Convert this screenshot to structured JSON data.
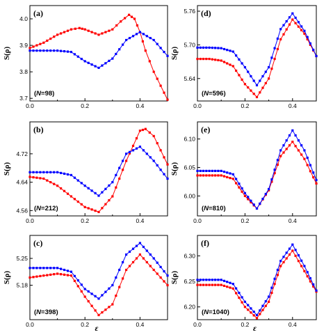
{
  "colors": {
    "red": "#ff0000",
    "blue": "#0000ff",
    "axis": "#000000"
  },
  "chart_data": [
    {
      "type": "line",
      "panel": "(a)",
      "n_label": {
        "pre": "(",
        "var": "N",
        "eq": "=98)"
      },
      "ylabel": "S(ρ)",
      "xlabel": "",
      "xlim": [
        0.0,
        0.5
      ],
      "ylim": [
        3.69,
        4.05
      ],
      "xticks": [
        "0.0",
        "0.2",
        "0.4"
      ],
      "yticks": [
        "3.7",
        "3.8",
        "3.9",
        "4.0"
      ],
      "series": [
        {
          "color": "red",
          "x": [
            0.0,
            0.05,
            0.1,
            0.15,
            0.18,
            0.2,
            0.25,
            0.3,
            0.33,
            0.36,
            0.38,
            0.4,
            0.42,
            0.45,
            0.5
          ],
          "y": [
            3.89,
            3.91,
            3.94,
            3.96,
            3.965,
            3.96,
            3.94,
            3.96,
            3.99,
            4.015,
            4.0,
            3.95,
            3.88,
            3.8,
            3.695
          ]
        },
        {
          "color": "blue",
          "x": [
            0.0,
            0.05,
            0.1,
            0.15,
            0.2,
            0.25,
            0.3,
            0.35,
            0.4,
            0.45,
            0.5
          ],
          "y": [
            3.88,
            3.88,
            3.88,
            3.875,
            3.84,
            3.815,
            3.85,
            3.92,
            3.95,
            3.92,
            3.86
          ]
        }
      ]
    },
    {
      "type": "line",
      "panel": "(d)",
      "n_label": {
        "pre": "(",
        "var": "N",
        "eq": "=596)"
      },
      "ylabel": "S(ρ)",
      "xlabel": "",
      "xlim": [
        0.0,
        0.5
      ],
      "ylim": [
        5.6,
        5.77
      ],
      "xticks": [
        "0.0",
        "0.2",
        "0.4"
      ],
      "yticks": [
        "5.64",
        "5.70",
        "5.76"
      ],
      "series": [
        {
          "color": "red",
          "x": [
            0.0,
            0.05,
            0.1,
            0.15,
            0.2,
            0.25,
            0.3,
            0.35,
            0.4,
            0.45,
            0.5
          ],
          "y": [
            5.675,
            5.675,
            5.672,
            5.662,
            5.63,
            5.607,
            5.64,
            5.71,
            5.745,
            5.72,
            5.68
          ]
        },
        {
          "color": "blue",
          "x": [
            0.0,
            0.05,
            0.1,
            0.15,
            0.2,
            0.25,
            0.3,
            0.35,
            0.4,
            0.45,
            0.5
          ],
          "y": [
            5.695,
            5.695,
            5.694,
            5.688,
            5.66,
            5.628,
            5.66,
            5.728,
            5.756,
            5.725,
            5.68
          ]
        }
      ]
    },
    {
      "type": "line",
      "panel": "(b)",
      "n_label": {
        "pre": "(",
        "var": "N",
        "eq": "=212)"
      },
      "ylabel": "S(ρ)",
      "xlabel": "",
      "xlim": [
        0.0,
        0.5
      ],
      "ylim": [
        4.545,
        4.81
      ],
      "xticks": [
        "0.0",
        "0.2",
        "0.4"
      ],
      "yticks": [
        "4.56",
        "4.64",
        "4.72"
      ],
      "series": [
        {
          "color": "red",
          "x": [
            0.0,
            0.05,
            0.1,
            0.15,
            0.2,
            0.25,
            0.3,
            0.35,
            0.4,
            0.42,
            0.45,
            0.5
          ],
          "y": [
            4.655,
            4.65,
            4.63,
            4.6,
            4.57,
            4.556,
            4.6,
            4.7,
            4.785,
            4.79,
            4.77,
            4.69
          ]
        },
        {
          "color": "blue",
          "x": [
            0.0,
            0.05,
            0.1,
            0.15,
            0.2,
            0.25,
            0.3,
            0.35,
            0.4,
            0.45,
            0.5
          ],
          "y": [
            4.668,
            4.668,
            4.668,
            4.66,
            4.63,
            4.602,
            4.64,
            4.72,
            4.74,
            4.7,
            4.65
          ]
        }
      ]
    },
    {
      "type": "line",
      "panel": "(e)",
      "n_label": {
        "pre": "(",
        "var": "N",
        "eq": "=810)"
      },
      "ylabel": "S(ρ)",
      "xlabel": "",
      "xlim": [
        0.0,
        0.5
      ],
      "ylim": [
        5.965,
        6.13
      ],
      "xticks": [
        "0.0",
        "0.2",
        "0.4"
      ],
      "yticks": [
        "6.00",
        "6.05",
        "6.10"
      ],
      "series": [
        {
          "color": "red",
          "x": [
            0.0,
            0.05,
            0.1,
            0.15,
            0.2,
            0.25,
            0.3,
            0.35,
            0.4,
            0.45,
            0.5
          ],
          "y": [
            6.036,
            6.036,
            6.036,
            6.03,
            6.0,
            5.978,
            6.01,
            6.07,
            6.095,
            6.065,
            6.022
          ]
        },
        {
          "color": "blue",
          "x": [
            0.0,
            0.05,
            0.1,
            0.15,
            0.2,
            0.25,
            0.3,
            0.35,
            0.4,
            0.45,
            0.5
          ],
          "y": [
            6.044,
            6.044,
            6.044,
            6.038,
            6.005,
            5.978,
            6.012,
            6.08,
            6.115,
            6.08,
            6.028
          ]
        }
      ]
    },
    {
      "type": "line",
      "panel": "(c)",
      "n_label": {
        "pre": "(",
        "var": "N",
        "eq": "=398)"
      },
      "ylabel": "S(ρ)",
      "xlabel": "ε",
      "xlim": [
        0.0,
        0.5
      ],
      "ylim": [
        5.09,
        5.31
      ],
      "xticks": [
        "0.0",
        "0.2",
        "0.4"
      ],
      "yticks": [
        "5.18",
        "5.25"
      ],
      "series": [
        {
          "color": "red",
          "x": [
            0.0,
            0.05,
            0.1,
            0.15,
            0.2,
            0.25,
            0.3,
            0.35,
            0.4,
            0.45,
            0.5
          ],
          "y": [
            5.2,
            5.205,
            5.21,
            5.205,
            5.15,
            5.102,
            5.13,
            5.22,
            5.26,
            5.22,
            5.18
          ]
        },
        {
          "color": "blue",
          "x": [
            0.0,
            0.05,
            0.1,
            0.15,
            0.2,
            0.25,
            0.3,
            0.35,
            0.4,
            0.45,
            0.5
          ],
          "y": [
            5.225,
            5.225,
            5.225,
            5.215,
            5.17,
            5.145,
            5.18,
            5.26,
            5.29,
            5.25,
            5.205
          ]
        }
      ]
    },
    {
      "type": "line",
      "panel": "(f)",
      "n_label": {
        "pre": "(",
        "var": "N",
        "eq": "=1040)"
      },
      "ylabel": "S(ρ)",
      "xlabel": "ε",
      "xlim": [
        0.0,
        0.5
      ],
      "ylim": [
        6.175,
        6.34
      ],
      "xticks": [
        "0.0",
        "0.2",
        "0.4"
      ],
      "yticks": [
        "6.20",
        "6.25",
        "6.30"
      ],
      "series": [
        {
          "color": "red",
          "x": [
            0.0,
            0.05,
            0.1,
            0.15,
            0.2,
            0.25,
            0.3,
            0.35,
            0.4,
            0.45,
            0.5
          ],
          "y": [
            6.243,
            6.243,
            6.243,
            6.236,
            6.2,
            6.178,
            6.21,
            6.28,
            6.31,
            6.27,
            6.23
          ]
        },
        {
          "color": "blue",
          "x": [
            0.0,
            0.05,
            0.1,
            0.15,
            0.2,
            0.25,
            0.3,
            0.35,
            0.4,
            0.45,
            0.5
          ],
          "y": [
            6.253,
            6.253,
            6.253,
            6.245,
            6.21,
            6.184,
            6.22,
            6.29,
            6.322,
            6.28,
            6.232
          ]
        }
      ]
    }
  ]
}
